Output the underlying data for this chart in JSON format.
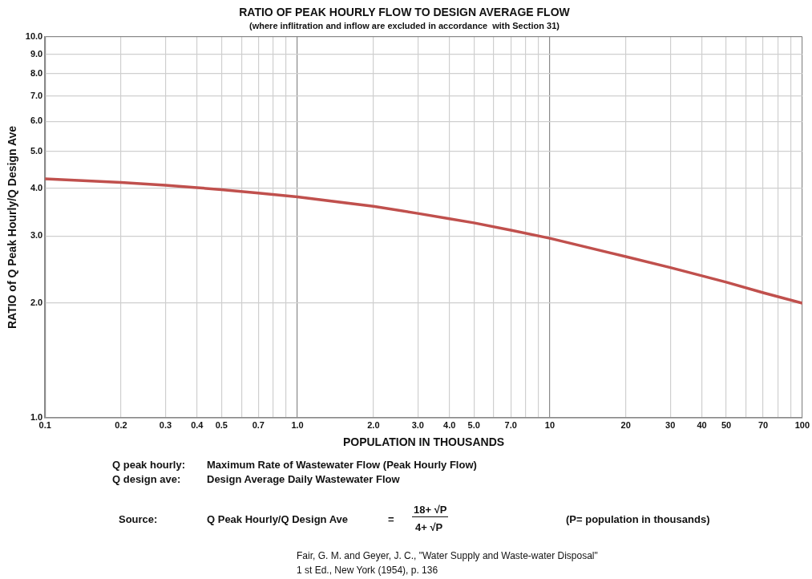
{
  "chart_data": {
    "type": "line",
    "title": "RATIO OF PEAK HOURLY FLOW TO DESIGN AVERAGE FLOW",
    "subtitle": "(where inflitration and inflow are excluded in accordance  with Section 31)",
    "xlabel": "POPULATION IN THOUSANDS",
    "ylabel": "RATIO of Q Peak Hourly/Q Design Ave",
    "x": [
      0.1,
      0.2,
      0.3,
      0.4,
      0.5,
      0.7,
      1,
      2,
      3,
      4,
      5,
      7,
      10,
      20,
      30,
      40,
      50,
      70,
      100
    ],
    "series": [
      {
        "color": "#c0504d",
        "values": [
          4.24,
          4.15,
          4.08,
          4.02,
          3.97,
          3.89,
          3.8,
          3.59,
          3.44,
          3.33,
          3.25,
          3.11,
          2.96,
          2.65,
          2.48,
          2.36,
          2.27,
          2.13,
          2.0
        ]
      }
    ],
    "log": "xy",
    "xlim": [
      0.1,
      100
    ],
    "ylim": [
      1,
      10
    ],
    "xticks": [
      {
        "value": 0.1,
        "label": "0.1"
      },
      {
        "value": 0.2,
        "label": "0.2"
      },
      {
        "value": 0.3,
        "label": "0.3"
      },
      {
        "value": 0.4,
        "label": "0.4"
      },
      {
        "value": 0.5,
        "label": "0.5"
      },
      {
        "value": 0.6,
        "label": null
      },
      {
        "value": 0.7,
        "label": "0.7"
      },
      {
        "value": 0.8,
        "label": null
      },
      {
        "value": 0.9,
        "label": null
      },
      {
        "value": 1,
        "label": "1.0"
      },
      {
        "value": 2,
        "label": "2.0"
      },
      {
        "value": 3,
        "label": "3.0"
      },
      {
        "value": 4,
        "label": "4.0"
      },
      {
        "value": 5,
        "label": "5.0"
      },
      {
        "value": 6,
        "label": null
      },
      {
        "value": 7,
        "label": "7.0"
      },
      {
        "value": 8,
        "label": null
      },
      {
        "value": 9,
        "label": null
      },
      10,
      20,
      30,
      40,
      50,
      {
        "value": 60,
        "label": null
      },
      70,
      {
        "value": 80,
        "label": null
      },
      {
        "value": 90,
        "label": null
      },
      100
    ],
    "yticks": [
      {
        "value": 1,
        "label": "1.0"
      },
      {
        "value": 2,
        "label": "2.0"
      },
      {
        "value": 3,
        "label": "3.0"
      },
      {
        "value": 4,
        "label": "4.0"
      },
      {
        "value": 5,
        "label": "5.0"
      },
      {
        "value": 6,
        "label": "6.0"
      },
      {
        "value": 7,
        "label": "7.0"
      },
      {
        "value": 8,
        "label": "8.0"
      },
      {
        "value": 9,
        "label": "9.0"
      },
      {
        "value": 10,
        "label": "10.0"
      }
    ],
    "grid": true,
    "legend": false,
    "marker": "none",
    "line_style": "solid",
    "annotations": [
      "Q peak hourly:",
      "Maximum Rate of Wastewater Flow (Peak Hourly Flow)",
      "Q design ave:",
      "Design Average Daily Wastewater Flow",
      "Source:",
      "Q  Peak Hourly/Q Design Ave",
      "=",
      "18+ √P",
      "4+ √P",
      "(P= population in thousands)",
      "Fair, G. M. and Geyer, J. C., \"Water Supply and Waste-water Disposal\"",
      "1 st Ed., New York (1954), p. 136"
    ]
  }
}
